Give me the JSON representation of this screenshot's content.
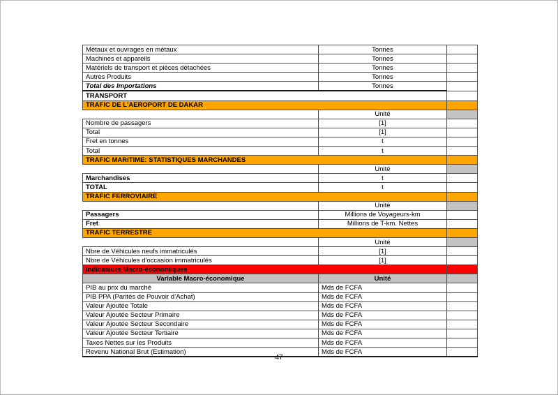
{
  "page": {
    "number": "47"
  },
  "colors": {
    "orange": "#FFA500",
    "red": "#FF0000",
    "header_gray": "#C3C3C3"
  },
  "table": {
    "columns": [
      "label",
      "unit",
      "value"
    ],
    "rows": [
      {
        "type": "data",
        "label": "Métaux et ouvrages en métaux",
        "unit": "Tonnes"
      },
      {
        "type": "data",
        "label": "Machines et appareils",
        "unit": "Tonnes"
      },
      {
        "type": "data",
        "label": "Matériels de transport et pièces détachées",
        "unit": "Tonnes"
      },
      {
        "type": "data",
        "label": "Autres Produits",
        "unit": "Tonnes"
      },
      {
        "type": "data",
        "label": "Total des Importations",
        "unit": "Tonnes",
        "label_bold": true,
        "label_italic": true,
        "thick_bottom": "partial"
      },
      {
        "type": "plain_section",
        "label": "TRANSPORT"
      },
      {
        "type": "orange_section",
        "label": "TRAFIC DE L'AEROPORT DE DAKAR"
      },
      {
        "type": "unit_header",
        "unit": "Unité"
      },
      {
        "type": "data",
        "label": "Nombre de passagers",
        "unit": "[1]"
      },
      {
        "type": "data",
        "label": "Total",
        "unit": "[1]"
      },
      {
        "type": "data",
        "label": "Fret en tonnes",
        "unit": "t"
      },
      {
        "type": "data",
        "label": "Total",
        "unit": "t"
      },
      {
        "type": "orange_section",
        "label": "TRAFIC MARITIME: STATISTIQUES MARCHANDES"
      },
      {
        "type": "unit_header",
        "unit": "Unité"
      },
      {
        "type": "data",
        "label": "Marchandises",
        "unit": "t",
        "label_bold": true
      },
      {
        "type": "data",
        "label": "TOTAL",
        "unit": "t",
        "label_bold": true
      },
      {
        "type": "orange_section",
        "label": "TRAFIC FERROVIAIRE"
      },
      {
        "type": "unit_header",
        "unit": "Unité"
      },
      {
        "type": "data",
        "label": "Passagers",
        "unit": "Millions de Voyageurs-km",
        "label_bold": true
      },
      {
        "type": "data",
        "label": "Fret",
        "unit": "Millions de T-km. Nettes",
        "label_bold": true
      },
      {
        "type": "orange_section",
        "label": "TRAFIC TERRESTRE"
      },
      {
        "type": "unit_header",
        "unit": "Unité"
      },
      {
        "type": "data",
        "label": "Nbre de Véhicules neufs immatriculés",
        "unit": "[1]"
      },
      {
        "type": "data",
        "label": "Nbre de Véhicules d'occasion immatriculés",
        "unit": "[1]"
      },
      {
        "type": "red_section",
        "label": "Indicateurs Macro-économiques"
      },
      {
        "type": "gray_header",
        "label": "Variable Macro-économique",
        "unit": "Unité"
      },
      {
        "type": "data",
        "label": "PIB au prix du marché",
        "unit": "Mds de FCFA",
        "unit_align": "left"
      },
      {
        "type": "data",
        "label": "PIB PPA (Parités de Pouvoir d’Achat)",
        "unit": "Mds de FCFA",
        "unit_align": "left"
      },
      {
        "type": "data",
        "label": "Valeur Ajoutée Totale",
        "unit": "Mds de FCFA",
        "unit_align": "left"
      },
      {
        "type": "data",
        "label": "Valeur Ajoutée Secteur Primaire",
        "unit": "Mds de FCFA",
        "unit_align": "left"
      },
      {
        "type": "data",
        "label": "Valeur Ajoutée Secteur Secondaire",
        "unit": "Mds de FCFA",
        "unit_align": "left"
      },
      {
        "type": "data",
        "label": "Valeur Ajoutée Secteur Tertiaire",
        "unit": "Mds de FCFA",
        "unit_align": "left"
      },
      {
        "type": "data",
        "label": "Taxes Nettes sur les Produits",
        "unit": "Mds de FCFA",
        "unit_align": "left"
      },
      {
        "type": "data",
        "label": "Revenu National Brut (Estimation)",
        "unit": "Mds de FCFA",
        "unit_align": "left",
        "thick_bottom": "full"
      }
    ]
  }
}
